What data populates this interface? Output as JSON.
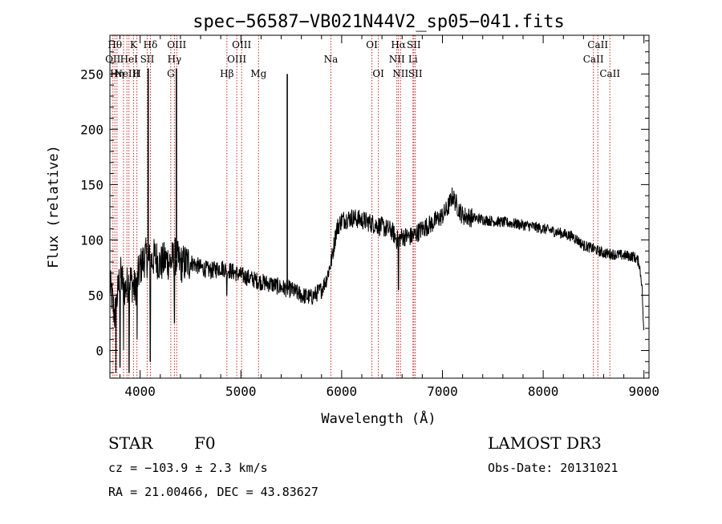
{
  "chart_data": {
    "type": "line",
    "title": "spec−56587−VB021N44V2_sp05−041.fits",
    "xlabel": "Wavelength (Å)",
    "ylabel": "Flux (relative)",
    "xlim": [
      3700,
      9050
    ],
    "ylim": [
      -25,
      285
    ],
    "xticks": [
      4000,
      5000,
      6000,
      7000,
      8000,
      9000
    ],
    "yticks": [
      0,
      50,
      100,
      150,
      200,
      250
    ],
    "spectrum_knots": [
      [
        3700,
        60
      ],
      [
        3750,
        30
      ],
      [
        3800,
        70
      ],
      [
        3850,
        55
      ],
      [
        3900,
        65
      ],
      [
        3950,
        55
      ],
      [
        4000,
        75
      ],
      [
        4050,
        85
      ],
      [
        4100,
        80
      ],
      [
        4150,
        85
      ],
      [
        4200,
        78
      ],
      [
        4250,
        82
      ],
      [
        4300,
        80
      ],
      [
        4350,
        85
      ],
      [
        4400,
        78
      ],
      [
        4500,
        80
      ],
      [
        4600,
        75
      ],
      [
        4700,
        72
      ],
      [
        4800,
        75
      ],
      [
        4900,
        72
      ],
      [
        5000,
        68
      ],
      [
        5100,
        65
      ],
      [
        5200,
        62
      ],
      [
        5300,
        60
      ],
      [
        5400,
        57
      ],
      [
        5500,
        55
      ],
      [
        5600,
        50
      ],
      [
        5700,
        48
      ],
      [
        5800,
        55
      ],
      [
        5850,
        65
      ],
      [
        5900,
        82
      ],
      [
        5950,
        110
      ],
      [
        6000,
        118
      ],
      [
        6100,
        120
      ],
      [
        6200,
        118
      ],
      [
        6300,
        115
      ],
      [
        6400,
        112
      ],
      [
        6500,
        108
      ],
      [
        6550,
        100
      ],
      [
        6600,
        103
      ],
      [
        6700,
        103
      ],
      [
        6800,
        110
      ],
      [
        6900,
        115
      ],
      [
        7000,
        122
      ],
      [
        7050,
        128
      ],
      [
        7100,
        140
      ],
      [
        7150,
        130
      ],
      [
        7200,
        122
      ],
      [
        7300,
        120
      ],
      [
        7500,
        117
      ],
      [
        7700,
        115
      ],
      [
        7900,
        112
      ],
      [
        8100,
        108
      ],
      [
        8300,
        103
      ],
      [
        8400,
        95
      ],
      [
        8500,
        92
      ],
      [
        8600,
        88
      ],
      [
        8700,
        87
      ],
      [
        8800,
        86
      ],
      [
        8900,
        85
      ],
      [
        8950,
        80
      ],
      [
        8980,
        60
      ],
      [
        9000,
        10
      ]
    ],
    "spikes": [
      {
        "x": 4080,
        "y": 255
      },
      {
        "x": 4360,
        "y": 255
      },
      {
        "x": 5460,
        "y": 250
      }
    ],
    "dips": [
      {
        "x": 3760,
        "y": -20
      },
      {
        "x": 3800,
        "y": -15
      },
      {
        "x": 3835,
        "y": 0
      },
      {
        "x": 3890,
        "y": -20
      },
      {
        "x": 3970,
        "y": 10
      },
      {
        "x": 4100,
        "y": -10
      },
      {
        "x": 4340,
        "y": 25
      },
      {
        "x": 4860,
        "y": 50
      },
      {
        "x": 6563,
        "y": 55
      }
    ],
    "emission_lines": [
      {
        "x": 3730,
        "label": "OII",
        "row": 1
      },
      {
        "x": 3750,
        "label": "Hθ",
        "row": 0
      },
      {
        "x": 3770,
        "label": "Hη",
        "row": 2
      },
      {
        "x": 3835,
        "label": "",
        "row": 0
      },
      {
        "x": 3869,
        "label": "NeIII",
        "row": 2
      },
      {
        "x": 3889,
        "label": "HeI",
        "row": 1
      },
      {
        "x": 3934,
        "label": "K",
        "row": 0
      },
      {
        "x": 3968,
        "label": "H",
        "row": 2
      },
      {
        "x": 4070,
        "label": "SII",
        "row": 1
      },
      {
        "x": 4102,
        "label": "Hδ",
        "row": 0
      },
      {
        "x": 4304,
        "label": "G",
        "row": 2
      },
      {
        "x": 4340,
        "label": "Hγ",
        "row": 1
      },
      {
        "x": 4363,
        "label": "OIII",
        "row": 0
      },
      {
        "x": 4861,
        "label": "Hβ",
        "row": 2
      },
      {
        "x": 4959,
        "label": "OIII",
        "row": 1
      },
      {
        "x": 5007,
        "label": "OIII",
        "row": 0
      },
      {
        "x": 5175,
        "label": "Mg",
        "row": 2
      },
      {
        "x": 5893,
        "label": "Na",
        "row": 1
      },
      {
        "x": 6300,
        "label": "OI",
        "row": 0
      },
      {
        "x": 6364,
        "label": "OI",
        "row": 2
      },
      {
        "x": 6548,
        "label": "NII",
        "row": 1
      },
      {
        "x": 6563,
        "label": "Hα",
        "row": 0
      },
      {
        "x": 6584,
        "label": "NII",
        "row": 2
      },
      {
        "x": 6708,
        "label": "Li",
        "row": 1
      },
      {
        "x": 6716,
        "label": "SII",
        "row": 0
      },
      {
        "x": 6731,
        "label": "SII",
        "row": 2
      },
      {
        "x": 8498,
        "label": "CaII",
        "row": 1
      },
      {
        "x": 8542,
        "label": "CaII",
        "row": 0
      },
      {
        "x": 8662,
        "label": "CaII",
        "row": 2
      }
    ]
  },
  "info": {
    "object_class": "STAR",
    "subclass": "F0",
    "survey": "LAMOST DR3",
    "redshift": "cz = −103.9 ± 2.3 km/s",
    "obs_date": "Obs-Date: 20131021",
    "coords": "RA =  21.00466, DEC =  43.83627"
  },
  "colors": {
    "spectrum": "#000000",
    "line_marker": "#cc2222",
    "axis": "#000000"
  }
}
